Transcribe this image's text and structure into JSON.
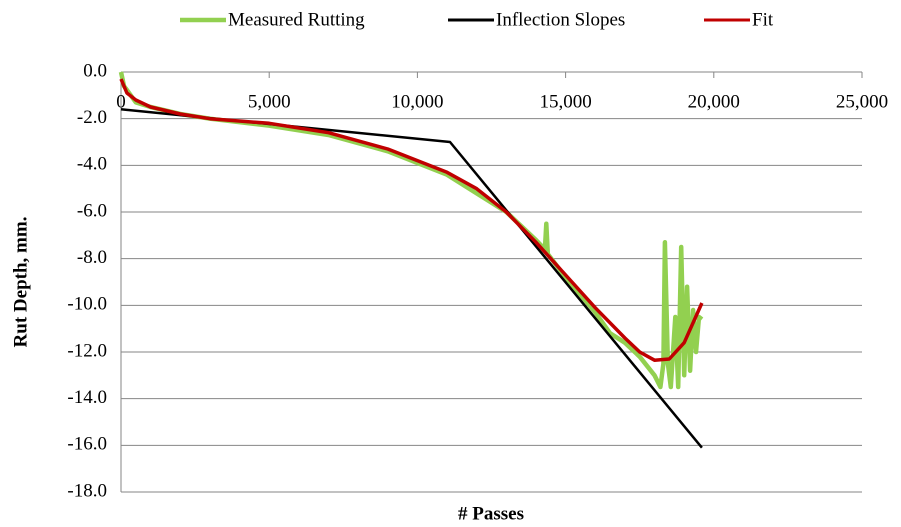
{
  "chart_data": {
    "type": "line",
    "x_label": "# Passes",
    "y_label": "Rut Depth, mm.",
    "xlim": [
      0,
      25000
    ],
    "xticks": [
      0,
      {
        "value": 5000,
        "label": "5,000"
      },
      {
        "value": 10000,
        "label": "10,000"
      },
      {
        "value": 15000,
        "label": "15,000"
      },
      {
        "value": 20000,
        "label": "20,000"
      },
      {
        "value": 25000,
        "label": "25,000"
      }
    ],
    "ylim": [
      -18,
      0
    ],
    "yticks": [
      {
        "value": 0,
        "label": "0.0"
      },
      {
        "value": -2,
        "label": "-2.0"
      },
      {
        "value": -4,
        "label": "-4.0"
      },
      {
        "value": -6,
        "label": "-6.0"
      },
      {
        "value": -8,
        "label": "-8.0"
      },
      {
        "value": -10,
        "label": "-10.0"
      },
      {
        "value": -12,
        "label": "-12.0"
      },
      {
        "value": -14,
        "label": "-14.0"
      },
      {
        "value": -16,
        "label": "-16.0"
      },
      {
        "value": -18,
        "label": "-18.0"
      }
    ],
    "grid": true,
    "legend": "top",
    "series": [
      {
        "name": "Measured Rutting",
        "color": "#92d050",
        "x": [
          0,
          100,
          500,
          1000,
          2000,
          3000,
          5000,
          7000,
          9000,
          11000,
          13000,
          14000,
          14300,
          14350,
          14400,
          15000,
          16000,
          16500,
          17000,
          17500,
          18000,
          18200,
          18300,
          18350,
          18450,
          18550,
          18700,
          18800,
          18900,
          19000,
          19100,
          19200,
          19300,
          19400,
          19500,
          19600
        ],
        "values": [
          0,
          -0.6,
          -1.3,
          -1.5,
          -1.8,
          -2.0,
          -2.3,
          -2.7,
          -3.4,
          -4.4,
          -6.0,
          -7.2,
          -7.6,
          -6.5,
          -7.8,
          -8.8,
          -10.3,
          -11.2,
          -11.6,
          -12.2,
          -13.0,
          -13.5,
          -12.5,
          -7.3,
          -12.5,
          -13.5,
          -10.5,
          -13.5,
          -7.5,
          -13.0,
          -9.2,
          -12.8,
          -10.2,
          -12.0,
          -10.5,
          -10.6
        ]
      },
      {
        "name": "Inflection Slopes",
        "color": "#000000",
        "x": [
          0,
          11100,
          19600
        ],
        "values": [
          -1.6,
          -3.0,
          -16.1
        ]
      },
      {
        "name": "Fit",
        "color": "#c00000",
        "x": [
          0,
          200,
          500,
          1000,
          2000,
          3000,
          5000,
          7000,
          9000,
          11000,
          12000,
          13000,
          14000,
          15000,
          16000,
          17000,
          17500,
          18000,
          18500,
          19000,
          19600
        ],
        "values": [
          -0.3,
          -0.9,
          -1.2,
          -1.5,
          -1.8,
          -2.0,
          -2.2,
          -2.6,
          -3.3,
          -4.3,
          -5.0,
          -6.0,
          -7.3,
          -8.7,
          -10.1,
          -11.4,
          -12.0,
          -12.35,
          -12.3,
          -11.6,
          -9.9
        ]
      }
    ]
  }
}
